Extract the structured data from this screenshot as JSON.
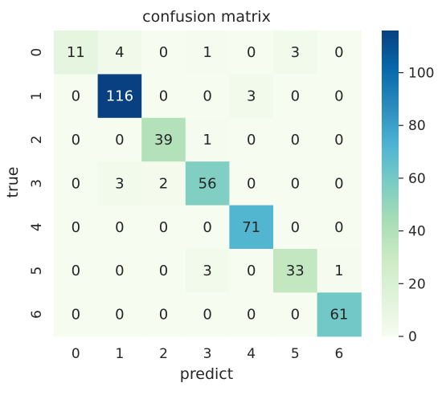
{
  "chart_data": {
    "type": "heatmap",
    "title": "confusion matrix",
    "xlabel": "predict",
    "ylabel": "true",
    "x_categories": [
      "0",
      "1",
      "2",
      "3",
      "4",
      "5",
      "6"
    ],
    "y_categories": [
      "0",
      "1",
      "2",
      "3",
      "4",
      "5",
      "6"
    ],
    "values": [
      [
        11,
        4,
        0,
        1,
        0,
        3,
        0
      ],
      [
        0,
        116,
        0,
        0,
        3,
        0,
        0
      ],
      [
        0,
        0,
        39,
        1,
        0,
        0,
        0
      ],
      [
        0,
        3,
        2,
        56,
        0,
        0,
        0
      ],
      [
        0,
        0,
        0,
        0,
        71,
        0,
        0
      ],
      [
        0,
        0,
        0,
        3,
        0,
        33,
        1
      ],
      [
        0,
        0,
        0,
        0,
        0,
        0,
        61
      ]
    ],
    "colormap": "GnBu",
    "color_range": [
      0,
      116
    ],
    "colorbar_ticks": [
      0,
      20,
      40,
      60,
      80,
      100
    ],
    "colorbar_tick_labels": [
      "0",
      "20",
      "40",
      "60",
      "80",
      "100"
    ],
    "colorbar": true,
    "grid": false,
    "colors": {
      "low": "#f7fcf0",
      "high": "#084081",
      "text_dark": "#262626",
      "text_light": "#ffffff"
    }
  }
}
